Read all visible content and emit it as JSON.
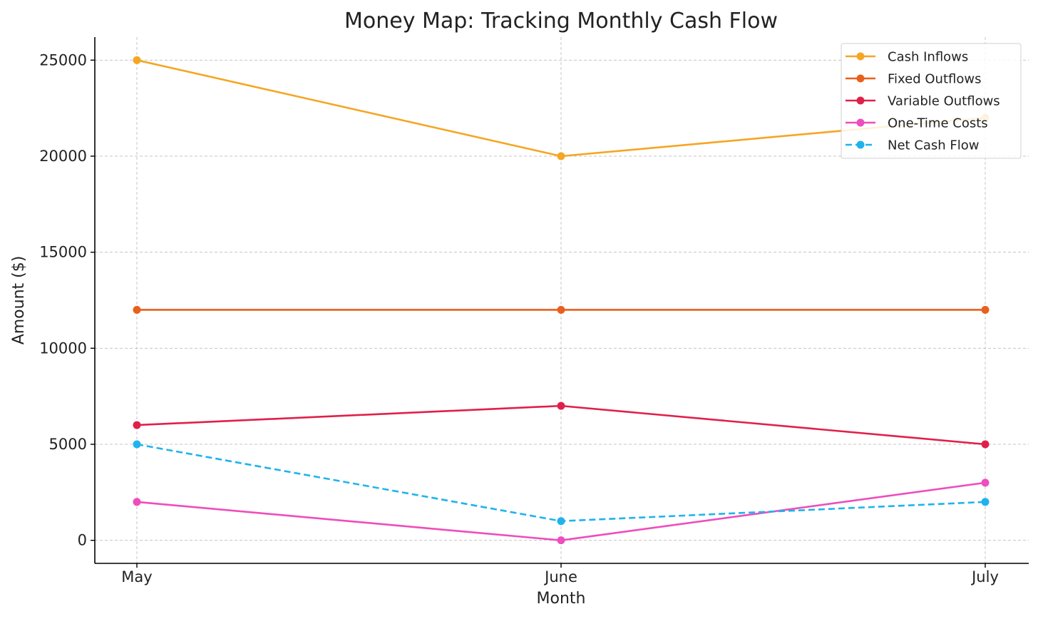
{
  "chart_data": {
    "type": "line",
    "title": "Money Map: Tracking Monthly Cash Flow",
    "xlabel": "Month",
    "ylabel": "Amount ($)",
    "categories": [
      "May",
      "June",
      "July"
    ],
    "ylim": [
      -1200,
      26200
    ],
    "yticks": [
      0,
      5000,
      10000,
      15000,
      20000,
      25000
    ],
    "grid": true,
    "legend_position": "top-right",
    "series": [
      {
        "name": "Cash Inflows",
        "values": [
          25000,
          20000,
          22000
        ],
        "color": "#f5a623",
        "dashed": false
      },
      {
        "name": "Fixed Outflows",
        "values": [
          12000,
          12000,
          12000
        ],
        "color": "#e8601c",
        "dashed": false
      },
      {
        "name": "Variable Outflows",
        "values": [
          6000,
          7000,
          5000
        ],
        "color": "#e0204a",
        "dashed": false
      },
      {
        "name": "One-Time Costs",
        "values": [
          2000,
          0,
          3000
        ],
        "color": "#ee4dbd",
        "dashed": false
      },
      {
        "name": "Net Cash Flow",
        "values": [
          5000,
          1000,
          2000
        ],
        "color": "#1fb3ee",
        "dashed": true
      }
    ]
  }
}
